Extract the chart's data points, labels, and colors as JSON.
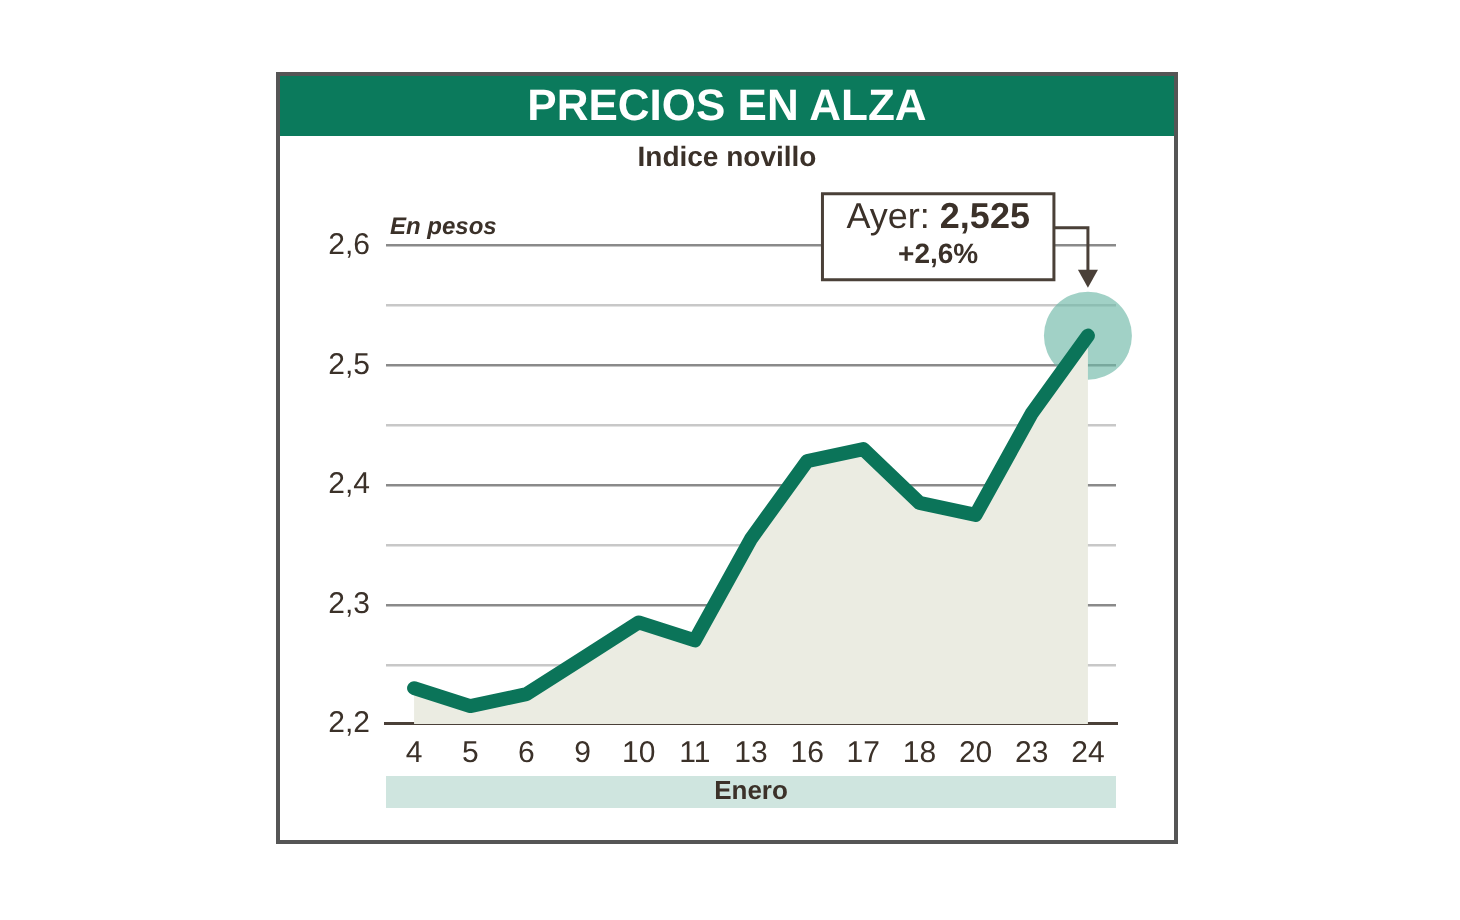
{
  "chart_data": {
    "type": "area",
    "title": "PRECIOS EN ALZA",
    "subtitle": "Indice novillo",
    "xlabel": "Enero",
    "ylabel": "En pesos",
    "categories": [
      "4",
      "5",
      "6",
      "9",
      "10",
      "11",
      "13",
      "16",
      "17",
      "18",
      "20",
      "23",
      "24"
    ],
    "series": [
      {
        "color": "#0b7459",
        "values": [
          2.23,
          2.215,
          2.225,
          2.255,
          2.285,
          2.27,
          2.355,
          2.42,
          2.43,
          2.385,
          2.375,
          2.46,
          2.525
        ]
      }
    ],
    "ylim": [
      2.2,
      2.6
    ],
    "yticks": [
      {
        "value": 2.2,
        "label": "2,2"
      },
      {
        "value": 2.25,
        "label": null
      },
      {
        "value": 2.3,
        "label": "2,3"
      },
      {
        "value": 2.35,
        "label": null
      },
      {
        "value": 2.4,
        "label": "2,4"
      },
      {
        "value": 2.45,
        "label": null
      },
      {
        "value": 2.5,
        "label": "2,5"
      },
      {
        "value": 2.55,
        "label": null
      },
      {
        "value": 2.6,
        "label": "2,6"
      }
    ],
    "grid": "y",
    "legend": false,
    "marker": "none",
    "annotations": [
      {
        "text": "Ayer: 2,525\n+2,6%",
        "x": "24",
        "y": 2.525
      }
    ]
  }
}
